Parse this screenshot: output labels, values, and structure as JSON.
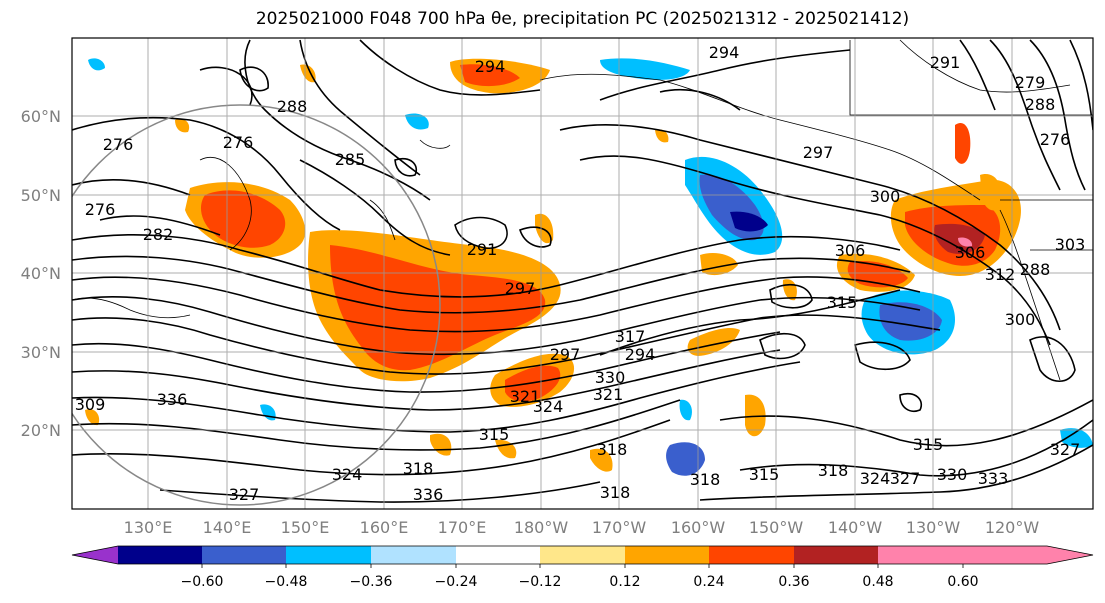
{
  "title": "2025021000 F048 700 hPa θe, precipitation PC (2025021312 - 2025021412)",
  "map": {
    "projection_note": "lat-lon",
    "lat_labels": [
      "60°N",
      "50°N",
      "40°N",
      "30°N",
      "20°N"
    ],
    "lon_labels": [
      "130°E",
      "140°E",
      "150°E",
      "160°E",
      "170°E",
      "180°W",
      "170°W",
      "160°W",
      "150°W",
      "140°W",
      "130°W",
      "120°W"
    ],
    "contour_labels": [
      "294",
      "294",
      "291",
      "288",
      "276",
      "276",
      "276",
      "282",
      "285",
      "297",
      "297",
      "306",
      "306",
      "288",
      "300",
      "315",
      "317",
      "321",
      "324",
      "318",
      "318",
      "315",
      "318",
      "324",
      "327",
      "327",
      "330",
      "333",
      "315",
      "318",
      "315",
      "318",
      "321",
      "324",
      "327",
      "330",
      "336",
      "336",
      "276",
      "279",
      "288",
      "291",
      "294",
      "297",
      "300",
      "303",
      "309",
      "312"
    ]
  },
  "colorbar": {
    "ticks": [
      "−0.60",
      "−0.48",
      "−0.36",
      "−0.24",
      "−0.12",
      "0.12",
      "0.24",
      "0.36",
      "0.48",
      "0.60"
    ],
    "colors": [
      "#9932cc",
      "#00008b",
      "#3a5fcd",
      "#00bfff",
      "#b0e2ff",
      "#ffffff",
      "#ffe78a",
      "#ffa500",
      "#ff4500",
      "#b22222",
      "#ff82ab"
    ]
  }
}
